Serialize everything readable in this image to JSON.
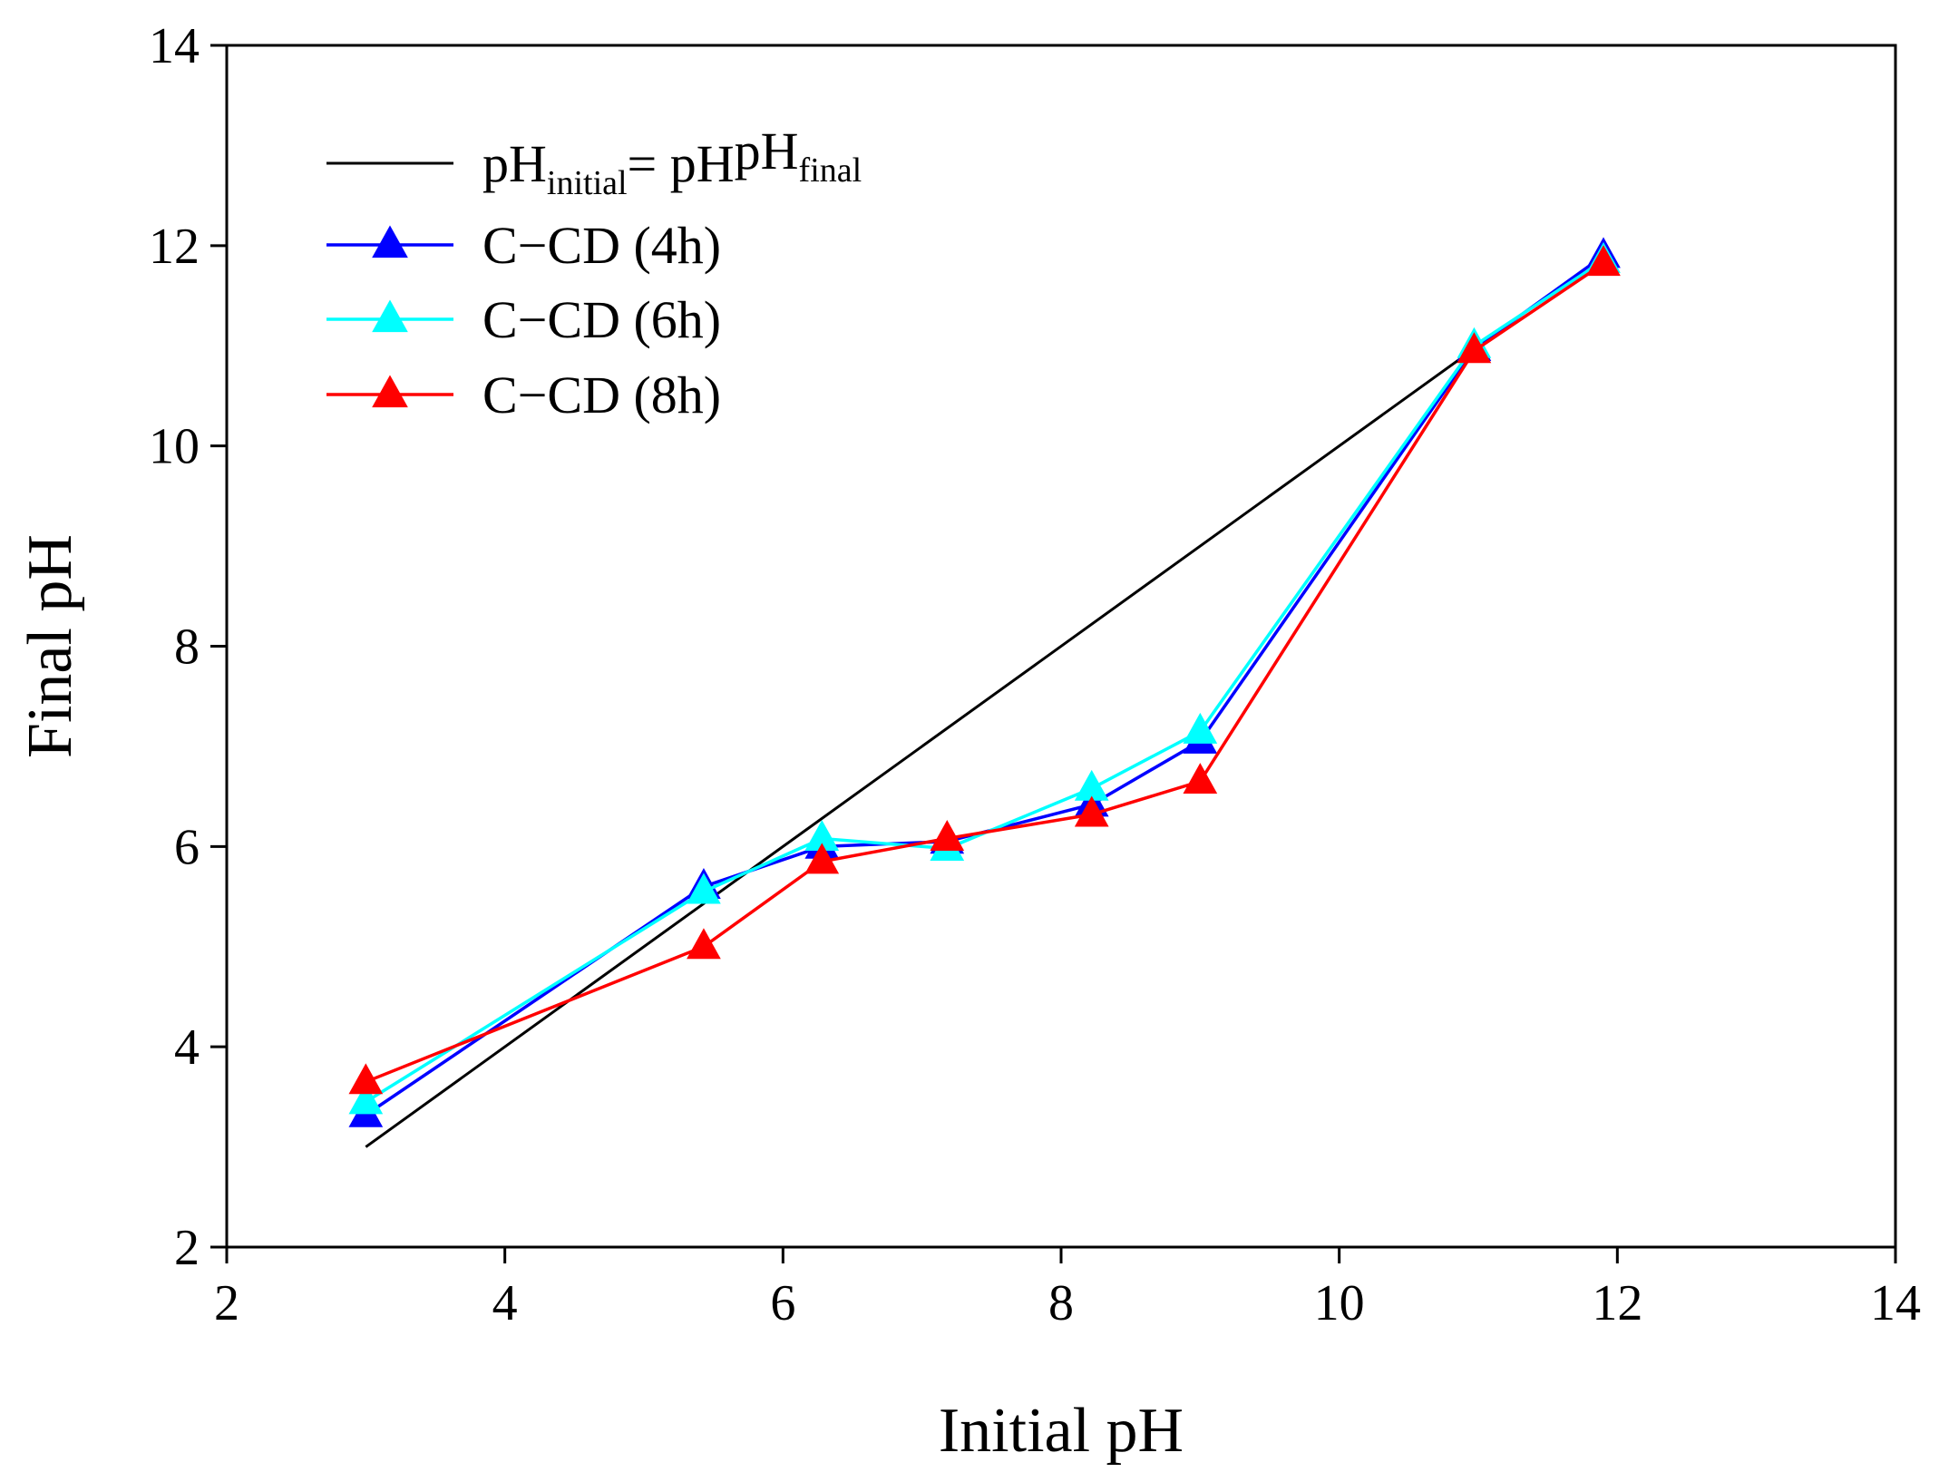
{
  "chart_data": {
    "type": "line",
    "title": "",
    "xlabel": "Initial pH",
    "ylabel": "Final pH",
    "xlim": [
      2,
      14
    ],
    "ylim": [
      2,
      14
    ],
    "xticks": [
      "2",
      "4",
      "6",
      "8",
      "10",
      "12",
      "14"
    ],
    "yticks": [
      "2",
      "4",
      "6",
      "8",
      "10",
      "12",
      "14"
    ],
    "grid": false,
    "legend_position": "top-left",
    "reference_line": {
      "name_main": "pH",
      "name_sub1": "initial",
      "name_eq": "= pH",
      "name_sub2": "final",
      "color": "#000000",
      "x": [
        3,
        11
      ],
      "y": [
        3,
        11
      ]
    },
    "series": [
      {
        "name": "C−CD (4h)",
        "color": "#0000FF",
        "marker": "triangle",
        "x": [
          3.0,
          5.43,
          6.28,
          7.18,
          8.22,
          9.0,
          10.97,
          11.9
        ],
        "y": [
          3.32,
          5.6,
          6.0,
          6.05,
          6.42,
          7.05,
          10.97,
          11.9
        ]
      },
      {
        "name": "C−CD (6h)",
        "color": "#00FFFF",
        "marker": "triangle",
        "x": [
          3.0,
          5.43,
          6.28,
          7.18,
          8.22,
          9.0,
          10.97,
          11.9
        ],
        "y": [
          3.45,
          5.55,
          6.08,
          5.98,
          6.58,
          7.15,
          11.0,
          11.85
        ]
      },
      {
        "name": "C−CD (8h)",
        "color": "#FF0000",
        "marker": "triangle",
        "x": [
          3.0,
          5.43,
          6.28,
          7.18,
          8.22,
          9.0,
          10.97,
          11.9
        ],
        "y": [
          3.65,
          5.0,
          5.85,
          6.08,
          6.32,
          6.65,
          10.95,
          11.82
        ]
      }
    ]
  }
}
